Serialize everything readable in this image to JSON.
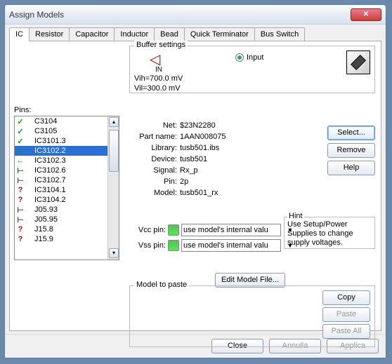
{
  "window": {
    "title": "Assign Models"
  },
  "tabs": [
    "IC",
    "Resistor",
    "Capacitor",
    "Inductor",
    "Bead",
    "Quick Terminator",
    "Bus Switch"
  ],
  "active_tab": 0,
  "buffer": {
    "legend": "Buffer settings",
    "in_label": "IN",
    "radio_label": "Input",
    "vih": "Vih=700.0 mV",
    "vil": "Vil=300.0 mV"
  },
  "pins_label": "Pins:",
  "pins": [
    {
      "icon": "check",
      "label": "C3104"
    },
    {
      "icon": "check",
      "label": "C3105"
    },
    {
      "icon": "check",
      "label": "IC3101.3"
    },
    {
      "icon": "left",
      "label": "IC3102.2",
      "selected": true
    },
    {
      "icon": "left",
      "label": "IC3102.3"
    },
    {
      "icon": "right",
      "label": "IC3102.6"
    },
    {
      "icon": "right",
      "label": "IC3102.7"
    },
    {
      "icon": "q",
      "label": "IC3104.1"
    },
    {
      "icon": "q",
      "label": "IC3104.2"
    },
    {
      "icon": "right",
      "label": "J05.93"
    },
    {
      "icon": "right",
      "label": "J05.95"
    },
    {
      "icon": "q",
      "label": "J15.8"
    },
    {
      "icon": "q",
      "label": "J15.9"
    }
  ],
  "info": {
    "Net": "$23N2280",
    "Part name": "1AAN008075",
    "Library": "tusb501.ibs",
    "Device": "tusb501",
    "Signal": "Rx_p",
    "Pin": "2p",
    "Model": "tusb501_rx"
  },
  "side_buttons": {
    "select": "Select...",
    "remove": "Remove",
    "help": "Help"
  },
  "vcc": {
    "label": "Vcc pin:",
    "value": "use model's internal valu"
  },
  "vss": {
    "label": "Vss pin:",
    "value": "use model's internal valu"
  },
  "hint": {
    "legend": "Hint",
    "text": "Use Setup/Power Supplies to change supply voltages."
  },
  "edit_model_label": "Edit Model File...",
  "paste": {
    "legend": "Model to paste",
    "copy": "Copy",
    "paste": "Paste",
    "paste_all": "Paste All"
  },
  "dialog": {
    "close": "Close",
    "cancel": "Annulla",
    "apply": "Applica"
  },
  "colors": {
    "selection": "#2a6fd6",
    "check": "#00aa00",
    "arrow": "#008800",
    "question": "#cc0000",
    "close_btn": "#c8422f",
    "accent": "#4a90d9"
  }
}
